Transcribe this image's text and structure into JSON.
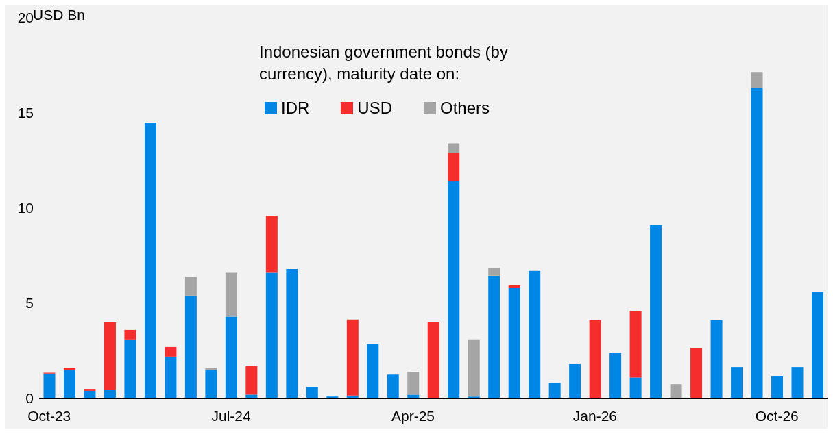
{
  "chart_data": {
    "type": "bar",
    "title": "Indonesian government bonds (by currency), maturity date on:",
    "ylabel": "USD Bn",
    "categories": [
      "Oct-23",
      null,
      null,
      null,
      null,
      null,
      null,
      null,
      null,
      "Jul-24",
      null,
      null,
      null,
      null,
      null,
      null,
      null,
      null,
      "Apr-25",
      null,
      null,
      null,
      null,
      null,
      null,
      null,
      null,
      "Jan-26",
      null,
      null,
      null,
      null,
      null,
      null,
      null,
      null,
      "Oct-26",
      null,
      null
    ],
    "series": [
      {
        "name": "IDR",
        "color": "#0087e6",
        "values": [
          1.3,
          1.5,
          0.4,
          0.45,
          3.1,
          14.5,
          2.2,
          5.4,
          1.5,
          4.3,
          0.2,
          6.6,
          6.8,
          0.6,
          0.1,
          0.15,
          2.85,
          1.25,
          0.2,
          0,
          11.4,
          0.1,
          6.45,
          5.8,
          6.7,
          0.8,
          1.8,
          0,
          2.4,
          1.1,
          9.1,
          0,
          0,
          4.1,
          1.65,
          16.3,
          1.15,
          1.65,
          5.6
        ]
      },
      {
        "name": "USD",
        "color": "#f52d2d",
        "values": [
          0.05,
          0.1,
          0.1,
          3.55,
          0.5,
          0,
          0.5,
          0,
          0,
          0,
          1.5,
          3.0,
          0,
          0,
          0,
          4.0,
          0,
          0,
          0,
          4.0,
          1.5,
          0,
          0,
          0.15,
          0,
          0,
          0,
          4.1,
          0,
          3.5,
          0,
          0,
          2.65,
          0,
          0,
          0,
          0,
          0,
          0
        ]
      },
      {
        "name": "Others",
        "color": "#a5a5a5",
        "values": [
          0,
          0,
          0,
          0,
          0,
          0,
          0,
          1.0,
          0.1,
          2.3,
          0,
          0,
          0,
          0,
          0,
          0,
          0,
          0,
          1.2,
          0,
          0.5,
          3.0,
          0.4,
          0,
          0,
          0,
          0,
          0,
          0,
          0,
          0,
          0.75,
          0,
          0,
          0,
          0.85,
          0,
          0,
          0
        ]
      }
    ],
    "stacked": true,
    "ylim": [
      0,
      20
    ],
    "yticks": [
      0,
      5,
      10,
      15,
      20
    ],
    "grid": false,
    "legend": "top"
  }
}
